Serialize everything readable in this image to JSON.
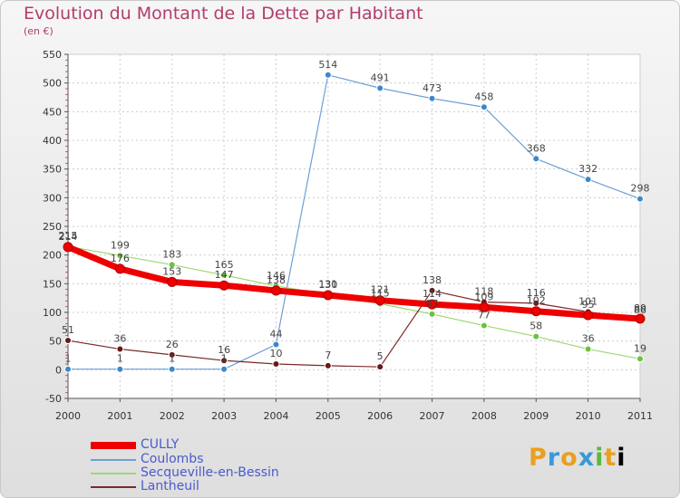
{
  "title": "Evolution du Montant de la Dette par Habitant",
  "subtitle": "(en €)",
  "logo": [
    "P",
    "r",
    "o",
    "x",
    "i",
    "t",
    "i"
  ],
  "colors": {
    "title": "#b23c6c",
    "grid": "#cccccc",
    "axis": "#555555",
    "legend_text": "#4a5ad0"
  },
  "chart_data": {
    "type": "line",
    "x": [
      2000,
      2001,
      2002,
      2003,
      2004,
      2005,
      2006,
      2007,
      2008,
      2009,
      2010,
      2011
    ],
    "ylim": [
      -50,
      550
    ],
    "yticks": [
      -50,
      0,
      50,
      100,
      150,
      200,
      250,
      300,
      350,
      400,
      450,
      500,
      550
    ],
    "grid": true,
    "legend_position": "bottom-left",
    "series": [
      {
        "name": "CULLY",
        "color": "#ee0000",
        "line_width": 7,
        "marker_color": "#ee0000",
        "values": [
          214,
          176,
          153,
          147,
          138,
          130,
          121,
          114,
          109,
          102,
          95,
          89
        ],
        "labels": [
          "214",
          "176",
          "153",
          "147",
          "138",
          "130",
          "121",
          "114",
          "109",
          "102",
          "95",
          "89"
        ]
      },
      {
        "name": "Coulombs",
        "color": "#6e9fd6",
        "line_width": 1.2,
        "marker_color": "#3d87cc",
        "values": [
          1,
          1,
          1,
          1,
          44,
          514,
          491,
          473,
          458,
          368,
          332,
          298
        ],
        "labels": [
          "1",
          "1",
          "1",
          "1",
          "44",
          "514",
          "491",
          "473",
          "458",
          "368",
          "332",
          "298"
        ]
      },
      {
        "name": "Secqueville-en-Bessin",
        "color": "#9ed870",
        "line_width": 1.2,
        "marker_color": "#6cc23c",
        "values": [
          215,
          199,
          183,
          165,
          146,
          131,
          115,
          97,
          77,
          58,
          36,
          19
        ],
        "labels": [
          "215",
          "199",
          "183",
          "165",
          "146",
          "131",
          "115",
          "97",
          "77",
          "58",
          "36",
          "19"
        ]
      },
      {
        "name": "Lantheuil",
        "color": "#7a2a2a",
        "line_width": 1.2,
        "marker_color": "#6a1818",
        "values": [
          51,
          36,
          26,
          16,
          10,
          7,
          5,
          138,
          118,
          116,
          101,
          86
        ],
        "labels": [
          "51",
          "36",
          "26",
          "16",
          "10",
          "7",
          "5",
          "138",
          "118",
          "116",
          "101",
          "86"
        ]
      }
    ]
  }
}
